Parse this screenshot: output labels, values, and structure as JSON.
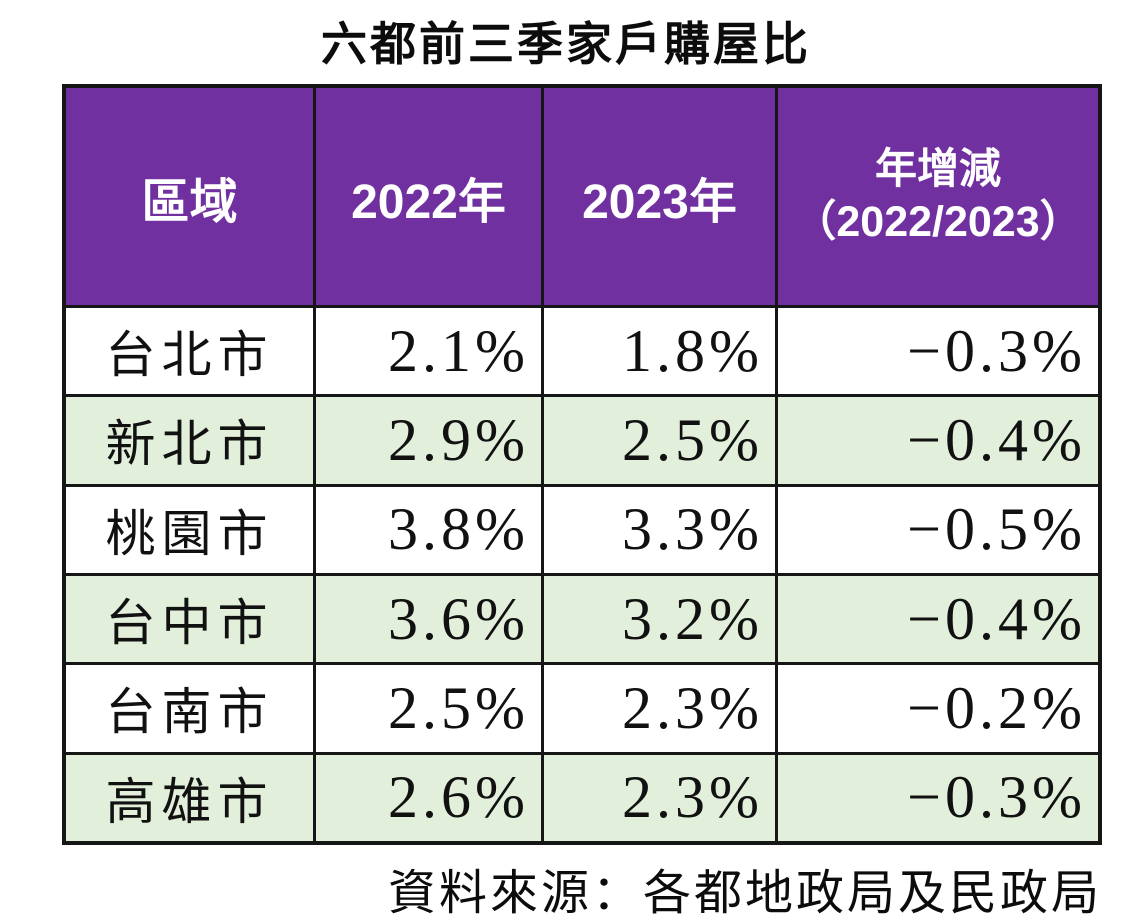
{
  "title": "六都前三季家戶購屋比",
  "source_note": "資料來源：各都地政局及民政局",
  "colors": {
    "header_bg": "#7030A0",
    "header_text": "#FFFFFF",
    "alt_row_bg": "#E2EFDA",
    "border": "#161616",
    "page_bg": "#FFFFFF"
  },
  "table": {
    "headers": {
      "region": "區域",
      "y2022": "2022年",
      "y2023": "2023年",
      "change_line1": "年增減",
      "change_line2": "（2022/2023）"
    },
    "rows": [
      {
        "region": "台北市",
        "y2022": "2.1%",
        "y2023": "1.8%",
        "change": "−0.3%"
      },
      {
        "region": "新北市",
        "y2022": "2.9%",
        "y2023": "2.5%",
        "change": "−0.4%"
      },
      {
        "region": "桃園市",
        "y2022": "3.8%",
        "y2023": "3.3%",
        "change": "−0.5%"
      },
      {
        "region": "台中市",
        "y2022": "3.6%",
        "y2023": "3.2%",
        "change": "−0.4%"
      },
      {
        "region": "台南市",
        "y2022": "2.5%",
        "y2023": "2.3%",
        "change": "−0.2%"
      },
      {
        "region": "高雄市",
        "y2022": "2.6%",
        "y2023": "2.3%",
        "change": "−0.3%"
      }
    ]
  },
  "chart_data": {
    "type": "table",
    "title": "六都前三季家戶購屋比",
    "columns": [
      "區域",
      "2022年",
      "2023年",
      "年增減（2022/2023）"
    ],
    "categories": [
      "台北市",
      "新北市",
      "桃園市",
      "台中市",
      "台南市",
      "高雄市"
    ],
    "series": [
      {
        "name": "2022年",
        "values": [
          2.1,
          2.9,
          3.8,
          3.6,
          2.5,
          2.6
        ]
      },
      {
        "name": "2023年",
        "values": [
          1.8,
          2.5,
          3.3,
          3.2,
          2.3,
          2.3
        ]
      },
      {
        "name": "年增減（2022/2023）",
        "values": [
          -0.3,
          -0.4,
          -0.5,
          -0.4,
          -0.2,
          -0.3
        ]
      }
    ],
    "unit": "%",
    "source": "資料來源：各都地政局及民政局",
    "layout": {
      "header_bg": "#7030A0",
      "alt_row_bg": "#E2EFDA",
      "striped": true
    }
  }
}
